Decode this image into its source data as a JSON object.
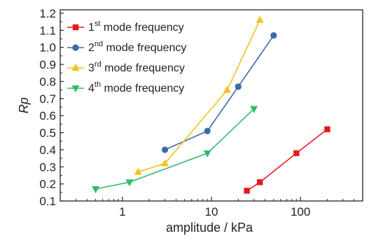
{
  "chart_data": {
    "type": "line",
    "xlabel": "amplitude / kPa",
    "ylabel": "Rp",
    "xscale": "log",
    "xlim": [
      0.2,
      500
    ],
    "ylim": [
      0.1,
      1.22
    ],
    "x_ticks": [
      {
        "value": 1,
        "label": "1"
      },
      {
        "value": 10,
        "label": "10"
      },
      {
        "value": 100,
        "label": "100"
      }
    ],
    "y_ticks": [
      {
        "value": 0.1,
        "label": "0.1"
      },
      {
        "value": 0.2,
        "label": "0.2"
      },
      {
        "value": 0.3,
        "label": "0.3"
      },
      {
        "value": 0.4,
        "label": "0.4"
      },
      {
        "value": 0.5,
        "label": "0.5"
      },
      {
        "value": 0.6,
        "label": "0.6"
      },
      {
        "value": 0.7,
        "label": "0.7"
      },
      {
        "value": 0.8,
        "label": "0.8"
      },
      {
        "value": 0.9,
        "label": "0.9"
      },
      {
        "value": 1.0,
        "label": "1.0"
      },
      {
        "value": 1.1,
        "label": "1.1"
      },
      {
        "value": 1.2,
        "label": "1.2"
      }
    ],
    "legend_position": "top-left",
    "series": [
      {
        "num": "1",
        "sup": "st",
        "name_rest": " mode frequency",
        "name": "1st mode frequency",
        "color": "#e8191e",
        "marker": "square",
        "x": [
          25,
          35,
          90,
          200
        ],
        "y": [
          0.16,
          0.21,
          0.38,
          0.52
        ]
      },
      {
        "num": "2",
        "sup": "nd",
        "name_rest": " mode frequency",
        "name": "2nd mode frequency",
        "color": "#3a6ba8",
        "marker": "circle",
        "x": [
          3,
          9,
          20,
          50
        ],
        "y": [
          0.4,
          0.51,
          0.77,
          1.07
        ]
      },
      {
        "num": "3",
        "sup": "rd",
        "name_rest": " mode frequency",
        "name": "3rd mode frequency",
        "color": "#f5c11e",
        "marker": "triangle-up",
        "x": [
          1.5,
          3,
          15,
          35
        ],
        "y": [
          0.27,
          0.32,
          0.75,
          1.16
        ]
      },
      {
        "num": "4",
        "sup": "th",
        "name_rest": " mode frequency",
        "name": "4th mode frequency",
        "color": "#35b96b",
        "marker": "triangle-down",
        "x": [
          0.5,
          1.2,
          9,
          30
        ],
        "y": [
          0.17,
          0.21,
          0.38,
          0.64
        ]
      }
    ]
  }
}
